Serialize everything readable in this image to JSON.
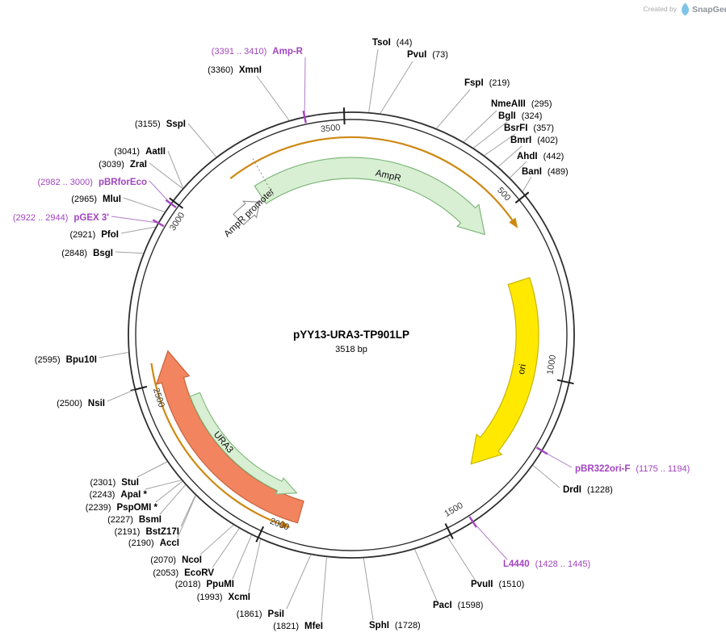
{
  "credit": {
    "prefix": "Created by",
    "brand": "SnapGene"
  },
  "plasmid": {
    "name": "pYY13-URA3-TP901LP",
    "length_label": "3518 bp",
    "length_bp": 3518
  },
  "ticks": [
    500,
    1000,
    1500,
    2000,
    2500,
    3000,
    3500
  ],
  "colors": {
    "primer": "#A245BF",
    "enzyme": "#000000",
    "leader_enzyme": "#A3A3A3",
    "leader_primer": "#B07CC6",
    "backbone": "#2E2E2E"
  },
  "features": [
    {
      "id": "ampr",
      "label": "AmpR",
      "fill": "#D8EFD3",
      "stroke": "#7FB77A"
    },
    {
      "id": "ampr-gene",
      "label": "",
      "fill": "none",
      "stroke": "#CE8812"
    },
    {
      "id": "ampr-promoter",
      "label": "AmpR promoter",
      "fill": "#FFFFFF",
      "stroke": "#8C8C8C"
    },
    {
      "id": "ori",
      "label": "ori",
      "fill": "#FFE900",
      "stroke": "#C8B400"
    },
    {
      "id": "ura3-span",
      "label": "",
      "fill": "#F28560",
      "stroke": "#C7633A"
    },
    {
      "id": "ura3",
      "label": "URA3",
      "fill": "#D8EFD3",
      "stroke": "#7FB77A"
    },
    {
      "id": "ura3-gene",
      "label": "",
      "fill": "none",
      "stroke": "#CE8812"
    }
  ],
  "sites": [
    {
      "name": "TsoI",
      "pos": "(44)",
      "primer": false
    },
    {
      "name": "PvuI",
      "pos": "(73)",
      "primer": false
    },
    {
      "name": "FspI",
      "pos": "(219)",
      "primer": false
    },
    {
      "name": "NmeAIII",
      "pos": "(295)",
      "primer": false
    },
    {
      "name": "BglI",
      "pos": "(324)",
      "primer": false
    },
    {
      "name": "BsrFI",
      "pos": "(357)",
      "primer": false
    },
    {
      "name": "BmrI",
      "pos": "(402)",
      "primer": false
    },
    {
      "name": "AhdI",
      "pos": "(442)",
      "primer": false
    },
    {
      "name": "BanI",
      "pos": "(489)",
      "primer": false
    },
    {
      "name": "pBR322ori-F",
      "pos": "(1175 .. 1194)",
      "primer": true
    },
    {
      "name": "DrdI",
      "pos": "(1228)",
      "primer": false
    },
    {
      "name": "L4440",
      "pos": "(1428 .. 1445)",
      "primer": true
    },
    {
      "name": "PvuII",
      "pos": "(1510)",
      "primer": false
    },
    {
      "name": "PacI",
      "pos": "(1598)",
      "primer": false
    },
    {
      "name": "SphI",
      "pos": "(1728)",
      "primer": false
    },
    {
      "name": "MfeI",
      "pos": "(1821)",
      "primer": false
    },
    {
      "name": "PsiI",
      "pos": "(1861)",
      "primer": false
    },
    {
      "name": "XcmI",
      "pos": "(1993)",
      "primer": false
    },
    {
      "name": "PpuMI",
      "pos": "(2018)",
      "primer": false
    },
    {
      "name": "EcoRV",
      "pos": "(2053)",
      "primer": false
    },
    {
      "name": "NcoI",
      "pos": "(2070)",
      "primer": false
    },
    {
      "name": "AccI",
      "pos": "(2190)",
      "primer": false
    },
    {
      "name": "BstZ17I",
      "pos": "(2191)",
      "primer": false
    },
    {
      "name": "BsmI",
      "pos": "(2227)",
      "primer": false
    },
    {
      "name": "PspOMI *",
      "pos": "(2239)",
      "primer": false
    },
    {
      "name": "ApaI *",
      "pos": "(2243)",
      "primer": false
    },
    {
      "name": "StuI",
      "pos": "(2301)",
      "primer": false
    },
    {
      "name": "NsiI",
      "pos": "(2500)",
      "primer": false
    },
    {
      "name": "Bpu10I",
      "pos": "(2595)",
      "primer": false
    },
    {
      "name": "BsgI",
      "pos": "(2848)",
      "primer": false
    },
    {
      "name": "PfoI",
      "pos": "(2921)",
      "primer": false
    },
    {
      "name": "pGEX 3'",
      "pos": "(2922 .. 2944)",
      "primer": true
    },
    {
      "name": "MluI",
      "pos": "(2965)",
      "primer": false
    },
    {
      "name": "pBRforEco",
      "pos": "(2982 .. 3000)",
      "primer": true
    },
    {
      "name": "ZraI",
      "pos": "(3039)",
      "primer": false
    },
    {
      "name": "AatII",
      "pos": "(3041)",
      "primer": false
    },
    {
      "name": "SspI",
      "pos": "(3155)",
      "primer": false
    },
    {
      "name": "XmnI",
      "pos": "(3360)",
      "primer": false
    },
    {
      "name": "Amp-R",
      "pos": "(3391 .. 3410)",
      "primer": true
    }
  ]
}
